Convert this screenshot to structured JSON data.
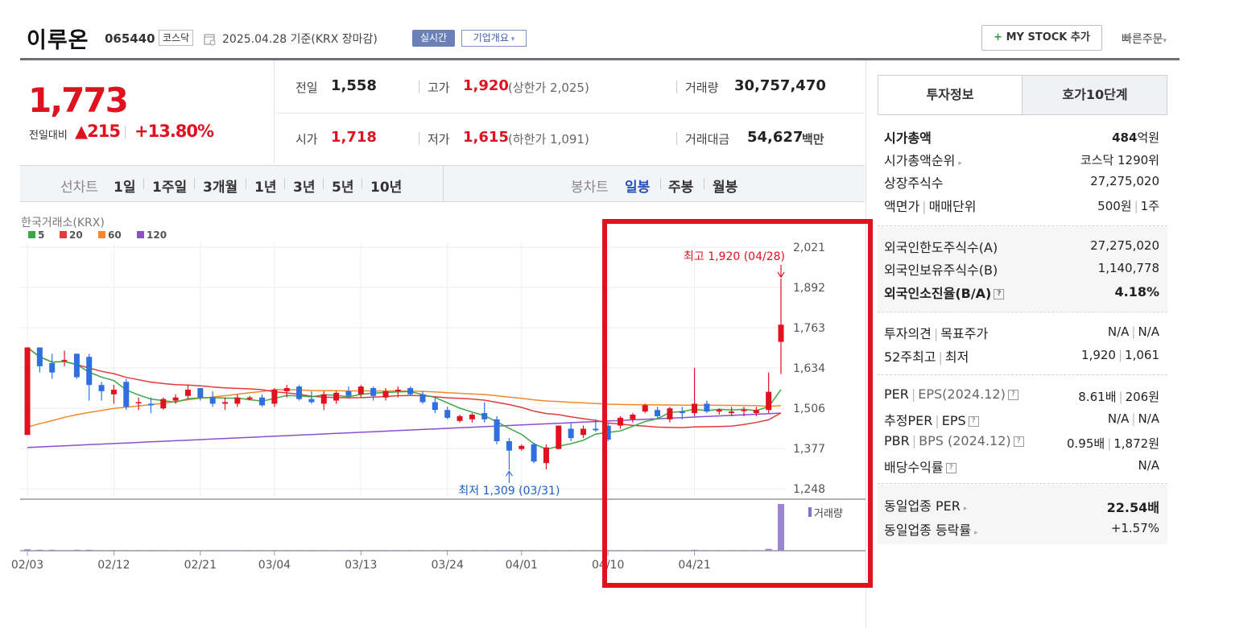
{
  "header": {
    "stock_name": "이루온",
    "stock_code": "065440",
    "market": "코스닥",
    "date_text": "2025.04.28  기준(KRX 장마감)",
    "realtime_label": "실시간",
    "corp_info_label": "기업개요",
    "mystock_label": "MY STOCK 추가",
    "mystock_plus": "+",
    "quick_order_label": "빠른주문"
  },
  "price": {
    "current": "1,773",
    "change_label": "전일대비",
    "change_value": "▲215",
    "change_pct": "+13.80%"
  },
  "stats": {
    "prev_label": "전일",
    "prev_value": "1,558",
    "high_label": "고가",
    "high_value": "1,920",
    "upper_limit": "(상한가 2,025)",
    "volume_label": "거래량",
    "volume_value": "30,757,470",
    "open_label": "시가",
    "open_value": "1,718",
    "low_label": "저가",
    "low_value": "1,615",
    "lower_limit": "(하한가 1,091)",
    "amount_label": "거래대금",
    "amount_value": "54,627",
    "amount_unit": "백만"
  },
  "period_tabs": {
    "line_label": "선차트",
    "line_items": [
      "1일",
      "1주일",
      "3개월",
      "1년",
      "3년",
      "5년",
      "10년"
    ],
    "candle_label": "봉차트",
    "candle_items": [
      "일봉",
      "주봉",
      "월봉"
    ],
    "active_candle": "일봉"
  },
  "chart_data": {
    "type": "candlestick",
    "source_label": "한국거래소(KRX)",
    "ma_legend": [
      {
        "name": "5",
        "color": "#3aa845"
      },
      {
        "name": "20",
        "color": "#e23b3b"
      },
      {
        "name": "60",
        "color": "#f08a2a"
      },
      {
        "name": "120",
        "color": "#8a4fd1"
      }
    ],
    "y_ticks": [
      "2,021",
      "1,892",
      "1,763",
      "1,634",
      "1,506",
      "1,377",
      "1,248"
    ],
    "y_range": [
      1248,
      2021
    ],
    "x_ticks": [
      "02/03",
      "02/12",
      "02/21",
      "03/04",
      "03/13",
      "03/24",
      "04/01",
      "04/10",
      "04/21"
    ],
    "high_annotation": "최고 1,920 (04/28)",
    "low_annotation": "최저 1,309 (03/31)",
    "volume_label": "거래량",
    "up_color": "#e0121f",
    "down_color": "#2f6fe0",
    "candles": [
      {
        "o": 1420,
        "h": 1700,
        "l": 1420,
        "c": 1700
      },
      {
        "o": 1700,
        "h": 1700,
        "l": 1620,
        "c": 1640
      },
      {
        "o": 1650,
        "h": 1680,
        "l": 1600,
        "c": 1620
      },
      {
        "o": 1660,
        "h": 1690,
        "l": 1640,
        "c": 1660
      },
      {
        "o": 1680,
        "h": 1680,
        "l": 1600,
        "c": 1605
      },
      {
        "o": 1670,
        "h": 1680,
        "l": 1530,
        "c": 1580
      },
      {
        "o": 1580,
        "h": 1590,
        "l": 1530,
        "c": 1560
      },
      {
        "o": 1550,
        "h": 1580,
        "l": 1520,
        "c": 1565
      },
      {
        "o": 1590,
        "h": 1600,
        "l": 1500,
        "c": 1510
      },
      {
        "o": 1525,
        "h": 1540,
        "l": 1500,
        "c": 1525
      },
      {
        "o": 1520,
        "h": 1540,
        "l": 1490,
        "c": 1515
      },
      {
        "o": 1505,
        "h": 1540,
        "l": 1500,
        "c": 1535
      },
      {
        "o": 1530,
        "h": 1550,
        "l": 1520,
        "c": 1540
      },
      {
        "o": 1545,
        "h": 1580,
        "l": 1535,
        "c": 1565
      },
      {
        "o": 1570,
        "h": 1570,
        "l": 1530,
        "c": 1540
      },
      {
        "o": 1540,
        "h": 1560,
        "l": 1510,
        "c": 1520
      },
      {
        "o": 1520,
        "h": 1540,
        "l": 1500,
        "c": 1525
      },
      {
        "o": 1520,
        "h": 1550,
        "l": 1510,
        "c": 1540
      },
      {
        "o": 1535,
        "h": 1545,
        "l": 1530,
        "c": 1540
      },
      {
        "o": 1540,
        "h": 1550,
        "l": 1510,
        "c": 1515
      },
      {
        "o": 1520,
        "h": 1570,
        "l": 1510,
        "c": 1565
      },
      {
        "o": 1560,
        "h": 1580,
        "l": 1540,
        "c": 1570
      },
      {
        "o": 1575,
        "h": 1580,
        "l": 1530,
        "c": 1535
      },
      {
        "o": 1535,
        "h": 1560,
        "l": 1520,
        "c": 1525
      },
      {
        "o": 1520,
        "h": 1560,
        "l": 1500,
        "c": 1550
      },
      {
        "o": 1530,
        "h": 1560,
        "l": 1520,
        "c": 1555
      },
      {
        "o": 1560,
        "h": 1575,
        "l": 1540,
        "c": 1545
      },
      {
        "o": 1550,
        "h": 1580,
        "l": 1540,
        "c": 1575
      },
      {
        "o": 1570,
        "h": 1575,
        "l": 1530,
        "c": 1545
      },
      {
        "o": 1540,
        "h": 1570,
        "l": 1530,
        "c": 1560
      },
      {
        "o": 1560,
        "h": 1575,
        "l": 1540,
        "c": 1565
      },
      {
        "o": 1570,
        "h": 1575,
        "l": 1545,
        "c": 1550
      },
      {
        "o": 1550,
        "h": 1560,
        "l": 1520,
        "c": 1525
      },
      {
        "o": 1525,
        "h": 1540,
        "l": 1490,
        "c": 1500
      },
      {
        "o": 1500,
        "h": 1510,
        "l": 1470,
        "c": 1475
      },
      {
        "o": 1465,
        "h": 1485,
        "l": 1460,
        "c": 1480
      },
      {
        "o": 1470,
        "h": 1490,
        "l": 1460,
        "c": 1485
      },
      {
        "o": 1490,
        "h": 1525,
        "l": 1460,
        "c": 1470
      },
      {
        "o": 1470,
        "h": 1480,
        "l": 1390,
        "c": 1400
      },
      {
        "o": 1400,
        "h": 1410,
        "l": 1309,
        "c": 1370
      },
      {
        "o": 1375,
        "h": 1390,
        "l": 1370,
        "c": 1385
      },
      {
        "o": 1390,
        "h": 1395,
        "l": 1330,
        "c": 1335
      },
      {
        "o": 1330,
        "h": 1390,
        "l": 1310,
        "c": 1380
      },
      {
        "o": 1375,
        "h": 1450,
        "l": 1375,
        "c": 1450
      },
      {
        "o": 1440,
        "h": 1460,
        "l": 1400,
        "c": 1410
      },
      {
        "o": 1420,
        "h": 1450,
        "l": 1410,
        "c": 1440
      },
      {
        "o": 1440,
        "h": 1470,
        "l": 1430,
        "c": 1435
      },
      {
        "o": 1450,
        "h": 1460,
        "l": 1400,
        "c": 1405
      },
      {
        "o": 1450,
        "h": 1480,
        "l": 1440,
        "c": 1475
      },
      {
        "o": 1470,
        "h": 1490,
        "l": 1460,
        "c": 1485
      },
      {
        "o": 1495,
        "h": 1520,
        "l": 1490,
        "c": 1515
      },
      {
        "o": 1500,
        "h": 1510,
        "l": 1470,
        "c": 1480
      },
      {
        "o": 1470,
        "h": 1510,
        "l": 1460,
        "c": 1505
      },
      {
        "o": 1495,
        "h": 1510,
        "l": 1470,
        "c": 1490
      },
      {
        "o": 1490,
        "h": 1635,
        "l": 1480,
        "c": 1520
      },
      {
        "o": 1520,
        "h": 1530,
        "l": 1490,
        "c": 1495
      },
      {
        "o": 1495,
        "h": 1505,
        "l": 1485,
        "c": 1500
      },
      {
        "o": 1490,
        "h": 1510,
        "l": 1480,
        "c": 1495
      },
      {
        "o": 1500,
        "h": 1510,
        "l": 1480,
        "c": 1500
      },
      {
        "o": 1490,
        "h": 1510,
        "l": 1480,
        "c": 1500
      },
      {
        "o": 1500,
        "h": 1620,
        "l": 1490,
        "c": 1558
      },
      {
        "o": 1718,
        "h": 1920,
        "l": 1615,
        "c": 1773
      }
    ],
    "volumes": [
      3,
      2,
      2,
      1,
      2,
      2,
      1,
      1,
      1,
      1,
      1,
      1,
      1,
      1,
      1,
      1,
      1,
      1,
      1,
      1,
      1,
      1,
      1,
      1,
      1,
      1,
      1,
      1,
      1,
      1,
      1,
      1,
      1,
      1,
      1,
      1,
      1,
      1,
      1,
      1,
      1,
      1,
      1,
      1,
      1,
      1,
      1,
      1,
      1,
      1,
      1,
      1,
      1,
      1,
      2,
      1,
      1,
      1,
      1,
      1,
      4,
      100
    ]
  },
  "right_panel": {
    "tabs": [
      "투자정보",
      "호가10단계"
    ],
    "active_tab": "투자정보",
    "market_cap_label": "시가총액",
    "market_cap_value": "484",
    "market_cap_unit": "억원",
    "rank_label": "시가총액순위",
    "rank_value": "코스닥 1290위",
    "shares_label": "상장주식수",
    "shares_value": "27,275,020",
    "par_label": "액면가",
    "par_sep": "|",
    "unit_label": "매매단위",
    "par_value": "500원",
    "unit_value": "1주",
    "foreign_limit_label": "외국인한도주식수(A)",
    "foreign_limit_value": "27,275,020",
    "foreign_hold_label": "외국인보유주식수(B)",
    "foreign_hold_value": "1,140,778",
    "foreign_ratio_label": "외국인소진율(B/A)",
    "foreign_ratio_value": "4.18%",
    "opinion_label": "투자의견",
    "target_label": "목표주가",
    "opinion_value": "N/A",
    "target_value": "N/A",
    "week52_label": "52주최고",
    "week52_low_label": "최저",
    "week52_high": "1,920",
    "week52_low": "1,061",
    "per_label": "PER",
    "eps_label": "EPS(2024.12)",
    "per_value": "8.61배",
    "eps_value": "206원",
    "est_per_label": "추정PER",
    "est_eps_label": "EPS",
    "est_per_value": "N/A",
    "est_eps_value": "N/A",
    "pbr_label": "PBR",
    "bps_label": "BPS (2024.12)",
    "pbr_value": "0.95배",
    "bps_value": "1,872원",
    "div_label": "배당수익률",
    "div_value": "N/A",
    "ind_per_label": "동일업종 PER",
    "ind_per_value": "22.54배",
    "ind_chg_label": "동일업종 등락률",
    "ind_chg_value": "+1.57%"
  }
}
